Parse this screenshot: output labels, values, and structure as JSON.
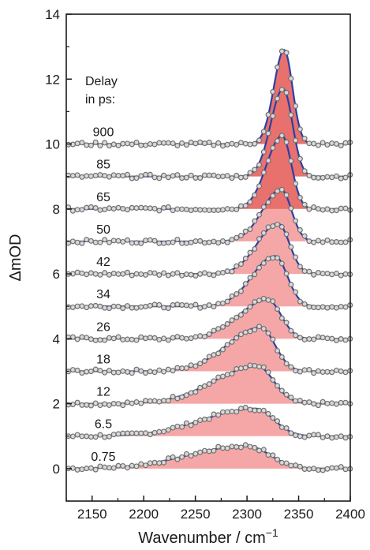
{
  "chart_data": {
    "type": "line",
    "xlabel": "Wavenumber / cm",
    "xlabel_sup": "−1",
    "ylabel": "ΔmOD",
    "xlim": [
      2125,
      2400
    ],
    "ylim": [
      -1,
      14
    ],
    "x_ticks": [
      2150,
      2200,
      2250,
      2300,
      2350,
      2400
    ],
    "y_ticks": [
      0,
      2,
      4,
      6,
      8,
      10,
      12,
      14
    ],
    "annotation_lines": [
      "Delay",
      "in ps:"
    ],
    "grid": false,
    "fill_color": "#f5a7a7",
    "fill_color_dark": "#e8706d",
    "line_color": "#2b3fa6",
    "marker_edge_color": "#707070",
    "marker_face_color": "#d9d9d9",
    "series": [
      {
        "delay": "0.75",
        "offset": 0,
        "peak_x": 2300,
        "width_left": 55,
        "width_right": 22,
        "amplitude": 0.7
      },
      {
        "delay": "6.5",
        "offset": 1,
        "peak_x": 2308,
        "width_left": 50,
        "width_right": 18,
        "amplitude": 0.85
      },
      {
        "delay": "12",
        "offset": 2,
        "peak_x": 2310,
        "width_left": 42,
        "width_right": 16,
        "amplitude": 1.15
      },
      {
        "delay": "18",
        "offset": 3,
        "peak_x": 2313,
        "width_left": 32,
        "width_right": 14,
        "amplitude": 1.35
      },
      {
        "delay": "26",
        "offset": 4,
        "peak_x": 2320,
        "width_left": 28,
        "width_right": 13,
        "amplitude": 1.2
      },
      {
        "delay": "34",
        "offset": 5,
        "peak_x": 2327,
        "width_left": 22,
        "width_right": 12,
        "amplitude": 1.55
      },
      {
        "delay": "42",
        "offset": 6,
        "peak_x": 2330,
        "width_left": 20,
        "width_right": 11,
        "amplitude": 1.55
      },
      {
        "delay": "50",
        "offset": 7,
        "peak_x": 2333,
        "width_left": 18,
        "width_right": 10,
        "amplitude": 1.6
      },
      {
        "delay": "65",
        "offset": 8,
        "peak_x": 2334,
        "width_left": 15,
        "width_right": 9,
        "amplitude": 2.25
      },
      {
        "delay": "85",
        "offset": 9,
        "peak_x": 2335,
        "width_left": 12,
        "width_right": 9,
        "amplitude": 2.7
      },
      {
        "delay": "900",
        "offset": 10,
        "peak_x": 2336,
        "width_left": 10,
        "width_right": 8,
        "amplitude": 2.9
      }
    ]
  }
}
